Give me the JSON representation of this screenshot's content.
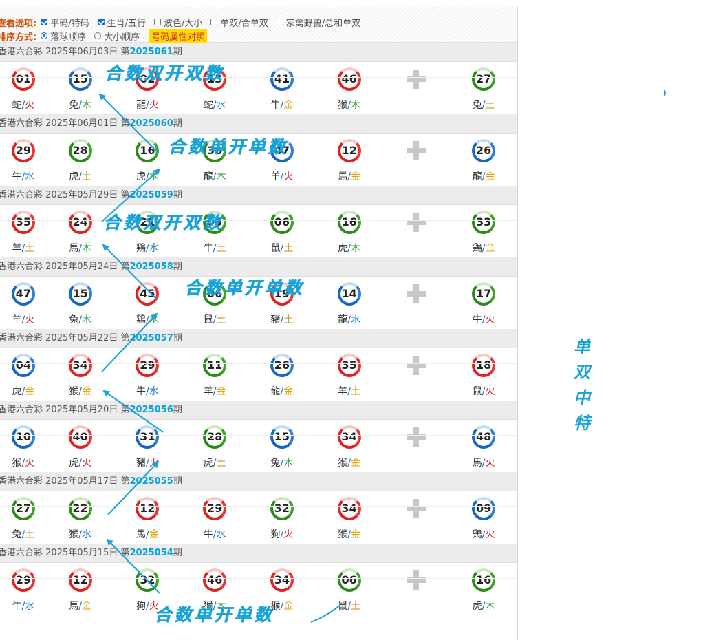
{
  "options": {
    "view_label": "查看选项:",
    "view_items": [
      {
        "label": "平码/特码",
        "checked": true
      },
      {
        "label": "生肖/五行",
        "checked": true
      },
      {
        "label": "波色/大小",
        "checked": false
      },
      {
        "label": "单双/合单双",
        "checked": false
      },
      {
        "label": "家禽野兽/总和单双",
        "checked": false
      }
    ],
    "sort_label": "排序方式:",
    "sort_items": [
      {
        "label": "落球顺序",
        "selected": true
      },
      {
        "label": "大小顺序",
        "selected": false
      }
    ],
    "highlight_link": "号码属性对照"
  },
  "draws": [
    {
      "lottery": "香港六合彩",
      "date": "2025年06月03日",
      "period_prefix": "第",
      "period": "2025061",
      "period_suffix": "期",
      "balls": [
        [
          "01",
          "red",
          "蛇",
          "火",
          "fire"
        ],
        [
          "15",
          "blue",
          "兔",
          "木",
          "wood"
        ],
        [
          "02",
          "red",
          "龍",
          "火",
          "fire"
        ],
        [
          "13",
          "red",
          "蛇",
          "水",
          "water"
        ],
        [
          "41",
          "blue",
          "牛",
          "金",
          "gold"
        ],
        [
          "46",
          "red",
          "猴",
          "木",
          "wood"
        ],
        [
          "27",
          "green",
          "兔",
          "土",
          "earth"
        ]
      ]
    },
    {
      "lottery": "香港六合彩",
      "date": "2025年06月01日",
      "period_prefix": "第",
      "period": "2025060",
      "period_suffix": "期",
      "balls": [
        [
          "29",
          "red",
          "牛",
          "水",
          "water"
        ],
        [
          "28",
          "green",
          "虎",
          "土",
          "earth"
        ],
        [
          "16",
          "green",
          "虎",
          "木",
          "wood"
        ],
        [
          "38",
          "green",
          "龍",
          "木",
          "wood"
        ],
        [
          "47",
          "blue",
          "羊",
          "火",
          "fire"
        ],
        [
          "12",
          "red",
          "馬",
          "金",
          "gold"
        ],
        [
          "26",
          "blue",
          "龍",
          "金",
          "gold"
        ]
      ]
    },
    {
      "lottery": "香港六合彩",
      "date": "2025年05月29日",
      "period_prefix": "第",
      "period": "2025059",
      "period_suffix": "期",
      "balls": [
        [
          "35",
          "red",
          "羊",
          "土",
          "earth"
        ],
        [
          "24",
          "red",
          "馬",
          "木",
          "wood"
        ],
        [
          "21",
          "green",
          "鶏",
          "水",
          "water"
        ],
        [
          "05",
          "green",
          "牛",
          "土",
          "earth"
        ],
        [
          "06",
          "green",
          "鼠",
          "土",
          "earth"
        ],
        [
          "16",
          "green",
          "虎",
          "木",
          "wood"
        ],
        [
          "33",
          "green",
          "鶏",
          "金",
          "gold"
        ]
      ]
    },
    {
      "lottery": "香港六合彩",
      "date": "2025年05月24日",
      "period_prefix": "第",
      "period": "2025058",
      "period_suffix": "期",
      "balls": [
        [
          "47",
          "blue",
          "羊",
          "火",
          "fire"
        ],
        [
          "15",
          "blue",
          "兔",
          "木",
          "wood"
        ],
        [
          "45",
          "red",
          "鶏",
          "木",
          "wood"
        ],
        [
          "06",
          "green",
          "鼠",
          "土",
          "earth"
        ],
        [
          "19",
          "red",
          "豬",
          "土",
          "earth"
        ],
        [
          "14",
          "blue",
          "龍",
          "水",
          "water"
        ],
        [
          "17",
          "green",
          "牛",
          "火",
          "fire"
        ]
      ]
    },
    {
      "lottery": "香港六合彩",
      "date": "2025年05月22日",
      "period_prefix": "第",
      "period": "2025057",
      "period_suffix": "期",
      "balls": [
        [
          "04",
          "blue",
          "虎",
          "金",
          "gold"
        ],
        [
          "34",
          "red",
          "猴",
          "金",
          "gold"
        ],
        [
          "29",
          "red",
          "牛",
          "水",
          "water"
        ],
        [
          "11",
          "green",
          "羊",
          "金",
          "gold"
        ],
        [
          "26",
          "blue",
          "龍",
          "金",
          "gold"
        ],
        [
          "35",
          "red",
          "羊",
          "土",
          "earth"
        ],
        [
          "18",
          "red",
          "鼠",
          "火",
          "fire"
        ]
      ]
    },
    {
      "lottery": "香港六合彩",
      "date": "2025年05月20日",
      "period_prefix": "第",
      "period": "2025056",
      "period_suffix": "期",
      "balls": [
        [
          "10",
          "blue",
          "猴",
          "火",
          "fire"
        ],
        [
          "40",
          "red",
          "虎",
          "火",
          "fire"
        ],
        [
          "31",
          "blue",
          "豬",
          "火",
          "fire"
        ],
        [
          "28",
          "green",
          "虎",
          "土",
          "earth"
        ],
        [
          "15",
          "blue",
          "兔",
          "木",
          "wood"
        ],
        [
          "34",
          "red",
          "猴",
          "金",
          "gold"
        ],
        [
          "48",
          "blue",
          "馬",
          "火",
          "fire"
        ]
      ]
    },
    {
      "lottery": "香港六合彩",
      "date": "2025年05月17日",
      "period_prefix": "第",
      "period": "2025055",
      "period_suffix": "期",
      "balls": [
        [
          "27",
          "green",
          "兔",
          "土",
          "earth"
        ],
        [
          "22",
          "green",
          "猴",
          "水",
          "water"
        ],
        [
          "12",
          "red",
          "馬",
          "金",
          "gold"
        ],
        [
          "29",
          "red",
          "牛",
          "水",
          "water"
        ],
        [
          "32",
          "green",
          "狗",
          "火",
          "fire"
        ],
        [
          "34",
          "red",
          "猴",
          "金",
          "gold"
        ],
        [
          "09",
          "blue",
          "鶏",
          "火",
          "fire"
        ]
      ]
    },
    {
      "lottery": "香港六合彩",
      "date": "2025年05月15日",
      "period_prefix": "第",
      "period": "2025054",
      "period_suffix": "期",
      "balls": [
        [
          "29",
          "red",
          "牛",
          "水",
          "water"
        ],
        [
          "12",
          "red",
          "馬",
          "金",
          "gold"
        ],
        [
          "32",
          "green",
          "狗",
          "火",
          "fire"
        ],
        [
          "46",
          "red",
          "猴",
          "木",
          "wood"
        ],
        [
          "34",
          "red",
          "猴",
          "金",
          "gold"
        ],
        [
          "06",
          "green",
          "鼠",
          "土",
          "earth"
        ],
        [
          "16",
          "green",
          "虎",
          "木",
          "wood"
        ]
      ]
    }
  ],
  "annotations": {
    "a1": "合数双开双数",
    "a2": "合数单开单数",
    "a3": "合数双开双数",
    "a4": "合数单开单数",
    "a5": "合数单开单数",
    "vertical": [
      "单",
      "双",
      "中",
      "特"
    ]
  },
  "colors": {
    "red": "#d22222",
    "blue": "#1866c2",
    "green": "#2c8a19",
    "annotation": "#1aa3d6",
    "accent": "#0aa0d8"
  }
}
